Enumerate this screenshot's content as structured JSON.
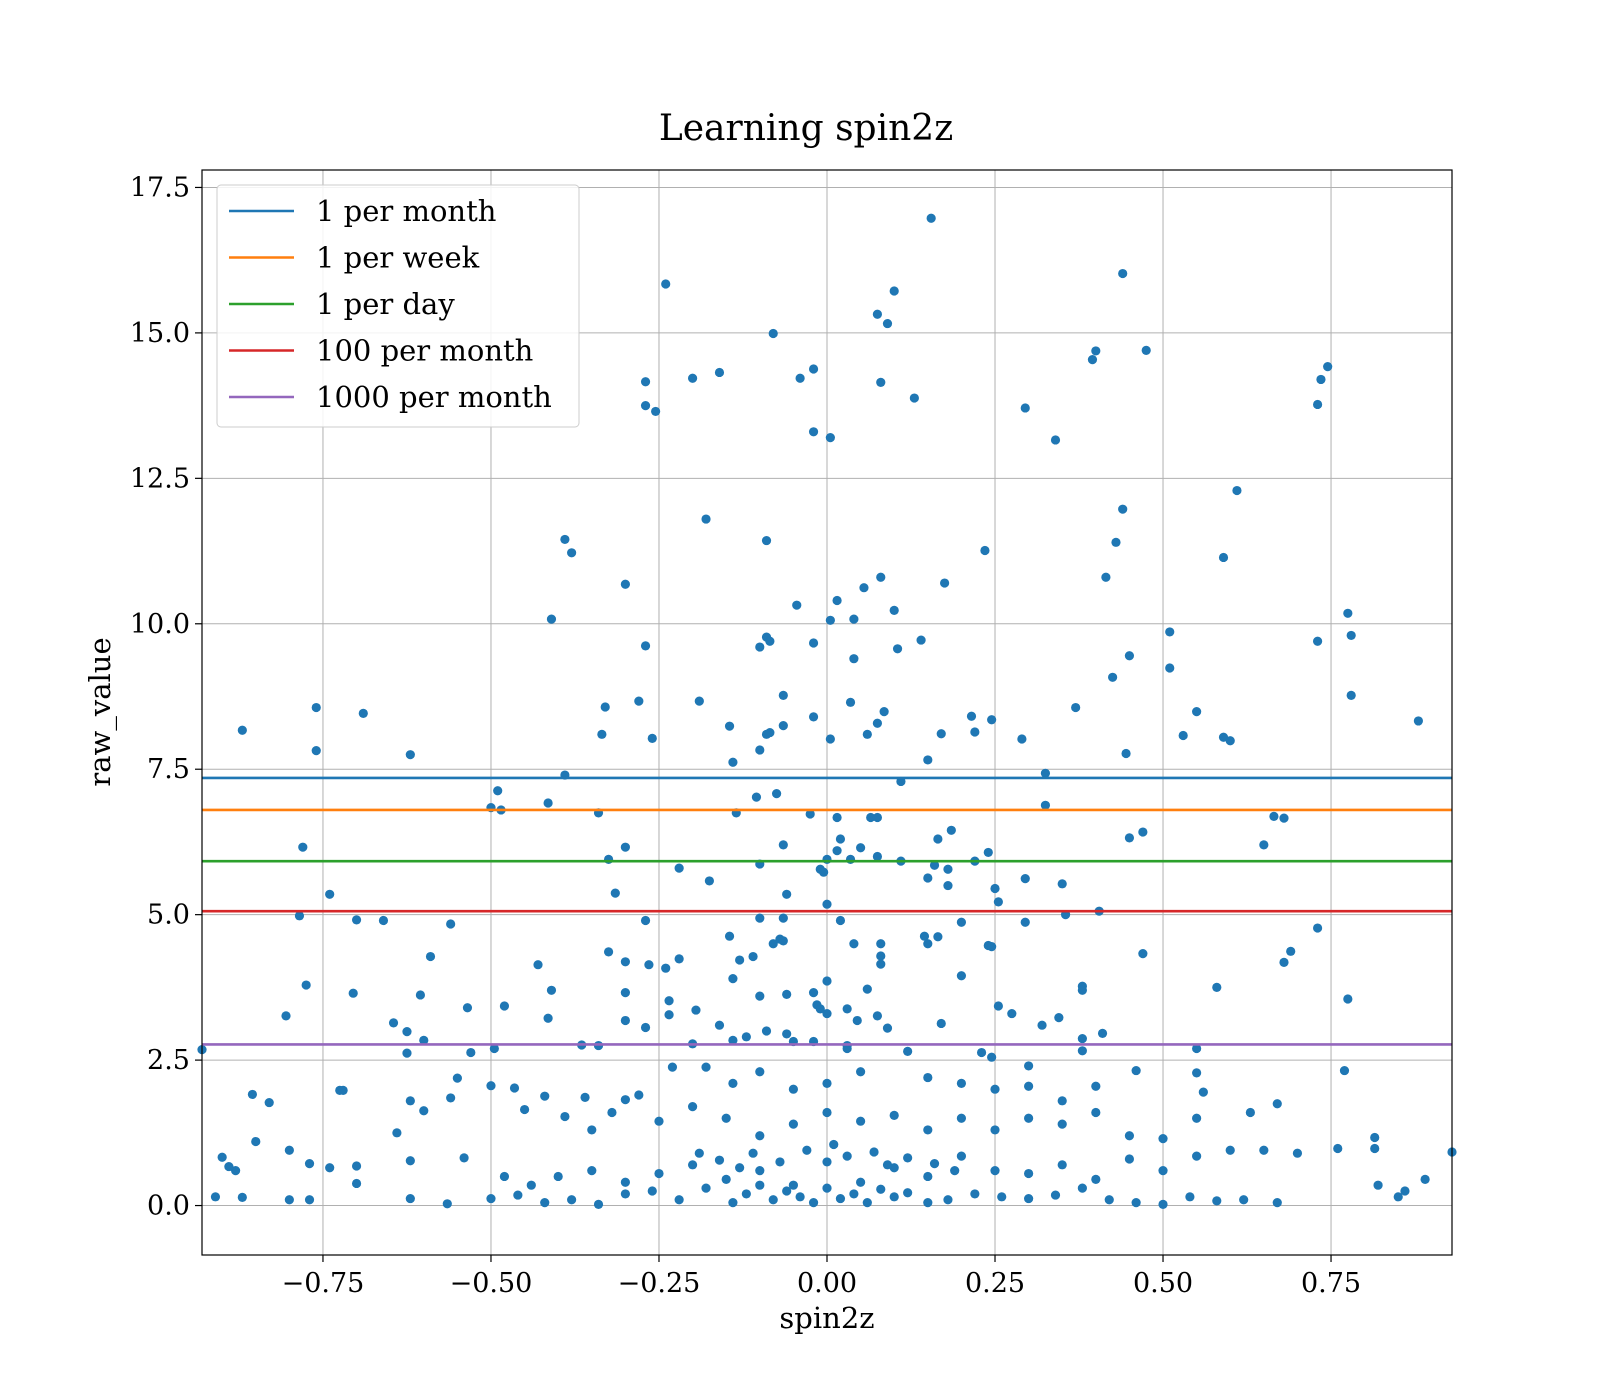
{
  "chart_data": {
    "type": "scatter",
    "title": "Learning spin2z",
    "xlabel": "spin2z",
    "ylabel": "raw_value",
    "xlim": [
      -0.93,
      0.93
    ],
    "ylim": [
      -0.85,
      17.8
    ],
    "xticks": [
      -0.75,
      -0.5,
      -0.25,
      0.0,
      0.25,
      0.5,
      0.75
    ],
    "xtick_labels": [
      "−0.75",
      "−0.50",
      "−0.25",
      "0.00",
      "0.25",
      "0.50",
      "0.75"
    ],
    "yticks": [
      0.0,
      2.5,
      5.0,
      7.5,
      10.0,
      12.5,
      15.0,
      17.5
    ],
    "ytick_labels": [
      "0.0",
      "2.5",
      "5.0",
      "7.5",
      "10.0",
      "12.5",
      "15.0",
      "17.5"
    ],
    "grid": true,
    "legend_position": "top-left",
    "point_color": "#1f77b4",
    "hlines": [
      {
        "name": "1 per month",
        "y": 7.35,
        "color": "#1f77b4"
      },
      {
        "name": "1 per week",
        "y": 6.8,
        "color": "#ff7f0e"
      },
      {
        "name": "1 per day",
        "y": 5.92,
        "color": "#2ca02c"
      },
      {
        "name": "100 per month",
        "y": 5.06,
        "color": "#d62728"
      },
      {
        "name": "1000 per month",
        "y": 2.77,
        "color": "#9467bd"
      }
    ],
    "points": [
      [
        0.155,
        16.97
      ],
      [
        -0.24,
        15.84
      ],
      [
        0.44,
        16.02
      ],
      [
        0.1,
        15.72
      ],
      [
        0.075,
        15.32
      ],
      [
        0.09,
        15.16
      ],
      [
        -0.08,
        14.99
      ],
      [
        0.4,
        14.69
      ],
      [
        0.395,
        14.54
      ],
      [
        0.475,
        14.7
      ],
      [
        0.745,
        14.42
      ],
      [
        0.735,
        14.2
      ],
      [
        0.73,
        13.77
      ],
      [
        -0.27,
        14.16
      ],
      [
        -0.27,
        13.75
      ],
      [
        -0.255,
        13.65
      ],
      [
        -0.2,
        14.22
      ],
      [
        -0.16,
        14.32
      ],
      [
        -0.04,
        14.22
      ],
      [
        -0.02,
        14.38
      ],
      [
        0.08,
        14.15
      ],
      [
        0.13,
        13.88
      ],
      [
        0.295,
        13.71
      ],
      [
        0.34,
        13.16
      ],
      [
        -0.02,
        13.3
      ],
      [
        0.005,
        13.2
      ],
      [
        0.61,
        12.29
      ],
      [
        0.44,
        11.97
      ],
      [
        0.43,
        11.4
      ],
      [
        0.59,
        11.14
      ],
      [
        0.415,
        10.8
      ],
      [
        -0.39,
        11.45
      ],
      [
        -0.38,
        11.22
      ],
      [
        -0.18,
        11.8
      ],
      [
        -0.09,
        11.43
      ],
      [
        0.235,
        11.26
      ],
      [
        0.175,
        10.7
      ],
      [
        0.08,
        10.8
      ],
      [
        0.055,
        10.62
      ],
      [
        0.015,
        10.4
      ],
      [
        -0.3,
        10.68
      ],
      [
        -0.41,
        10.08
      ],
      [
        -0.045,
        10.32
      ],
      [
        0.005,
        10.06
      ],
      [
        0.04,
        10.08
      ],
      [
        0.1,
        10.23
      ],
      [
        0.775,
        10.18
      ],
      [
        0.51,
        9.86
      ],
      [
        0.78,
        9.8
      ],
      [
        0.73,
        9.7
      ],
      [
        -0.27,
        9.62
      ],
      [
        -0.1,
        9.6
      ],
      [
        -0.09,
        9.77
      ],
      [
        -0.085,
        9.7
      ],
      [
        -0.02,
        9.67
      ],
      [
        0.04,
        9.4
      ],
      [
        0.105,
        9.57
      ],
      [
        0.14,
        9.72
      ],
      [
        0.45,
        9.45
      ],
      [
        0.51,
        9.24
      ],
      [
        0.425,
        9.08
      ],
      [
        -0.87,
        8.17
      ],
      [
        -0.76,
        8.56
      ],
      [
        -0.69,
        8.46
      ],
      [
        -0.76,
        7.82
      ],
      [
        -0.62,
        7.75
      ],
      [
        -0.33,
        8.57
      ],
      [
        -0.28,
        8.67
      ],
      [
        -0.335,
        8.1
      ],
      [
        -0.26,
        8.03
      ],
      [
        -0.19,
        8.67
      ],
      [
        -0.145,
        8.24
      ],
      [
        -0.065,
        8.77
      ],
      [
        -0.09,
        8.1
      ],
      [
        -0.085,
        8.13
      ],
      [
        -0.065,
        8.25
      ],
      [
        -0.02,
        8.4
      ],
      [
        0.005,
        8.02
      ],
      [
        0.035,
        8.65
      ],
      [
        0.085,
        8.49
      ],
      [
        0.06,
        8.1
      ],
      [
        0.075,
        8.29
      ],
      [
        0.17,
        8.11
      ],
      [
        0.215,
        8.41
      ],
      [
        0.22,
        8.14
      ],
      [
        0.245,
        8.35
      ],
      [
        0.29,
        8.02
      ],
      [
        0.37,
        8.56
      ],
      [
        0.78,
        8.77
      ],
      [
        0.88,
        8.33
      ],
      [
        0.53,
        8.08
      ],
      [
        0.55,
        8.49
      ],
      [
        0.59,
        8.05
      ],
      [
        0.6,
        7.99
      ],
      [
        0.445,
        7.77
      ],
      [
        -0.14,
        7.62
      ],
      [
        -0.1,
        7.83
      ],
      [
        0.15,
        7.66
      ],
      [
        0.11,
        7.29
      ],
      [
        -0.39,
        7.4
      ],
      [
        0.325,
        7.43
      ],
      [
        -0.49,
        7.13
      ],
      [
        -0.5,
        6.84
      ],
      [
        -0.485,
        6.8
      ],
      [
        -0.415,
        6.92
      ],
      [
        -0.34,
        6.75
      ],
      [
        -0.105,
        7.02
      ],
      [
        -0.075,
        7.08
      ],
      [
        -0.135,
        6.75
      ],
      [
        -0.025,
        6.73
      ],
      [
        0.015,
        6.67
      ],
      [
        0.065,
        6.67
      ],
      [
        0.075,
        6.67
      ],
      [
        0.325,
        6.88
      ],
      [
        0.665,
        6.69
      ],
      [
        0.68,
        6.66
      ],
      [
        -0.78,
        6.16
      ],
      [
        -0.3,
        6.16
      ],
      [
        -0.325,
        5.95
      ],
      [
        -0.065,
        6.2
      ],
      [
        0.015,
        6.1
      ],
      [
        0.02,
        6.3
      ],
      [
        0.05,
        6.15
      ],
      [
        0.075,
        6.0
      ],
      [
        0.035,
        5.95
      ],
      [
        0.0,
        5.95
      ],
      [
        0.165,
        6.3
      ],
      [
        0.185,
        6.45
      ],
      [
        0.24,
        6.07
      ],
      [
        0.22,
        5.92
      ],
      [
        0.18,
        5.78
      ],
      [
        0.16,
        5.85
      ],
      [
        0.11,
        5.92
      ],
      [
        0.45,
        6.32
      ],
      [
        0.47,
        6.42
      ],
      [
        0.65,
        6.2
      ],
      [
        -0.74,
        5.35
      ],
      [
        -0.315,
        5.37
      ],
      [
        -0.22,
        5.8
      ],
      [
        -0.175,
        5.58
      ],
      [
        -0.1,
        5.87
      ],
      [
        -0.01,
        5.78
      ],
      [
        -0.005,
        5.73
      ],
      [
        -0.06,
        5.35
      ],
      [
        0.0,
        5.18
      ],
      [
        0.18,
        5.5
      ],
      [
        0.15,
        5.63
      ],
      [
        0.25,
        5.45
      ],
      [
        0.255,
        5.22
      ],
      [
        0.295,
        5.62
      ],
      [
        0.35,
        5.53
      ],
      [
        -0.785,
        4.98
      ],
      [
        -0.7,
        4.91
      ],
      [
        -0.66,
        4.9
      ],
      [
        -0.56,
        4.84
      ],
      [
        -0.27,
        4.9
      ],
      [
        -0.1,
        4.94
      ],
      [
        -0.065,
        4.94
      ],
      [
        0.02,
        4.9
      ],
      [
        0.295,
        4.87
      ],
      [
        0.355,
        5.0
      ],
      [
        0.405,
        5.06
      ],
      [
        -0.59,
        4.28
      ],
      [
        -0.43,
        4.14
      ],
      [
        -0.325,
        4.36
      ],
      [
        -0.3,
        4.19
      ],
      [
        -0.265,
        4.14
      ],
      [
        -0.24,
        4.08
      ],
      [
        -0.22,
        4.24
      ],
      [
        -0.145,
        4.63
      ],
      [
        -0.13,
        4.22
      ],
      [
        -0.11,
        4.28
      ],
      [
        -0.08,
        4.5
      ],
      [
        -0.07,
        4.58
      ],
      [
        -0.065,
        4.55
      ],
      [
        0.04,
        4.5
      ],
      [
        0.08,
        4.5
      ],
      [
        0.08,
        4.29
      ],
      [
        0.08,
        4.15
      ],
      [
        0.145,
        4.63
      ],
      [
        0.15,
        4.5
      ],
      [
        0.165,
        4.62
      ],
      [
        0.2,
        4.87
      ],
      [
        0.24,
        4.47
      ],
      [
        0.245,
        4.45
      ],
      [
        0.47,
        4.33
      ],
      [
        0.73,
        4.77
      ],
      [
        0.69,
        4.37
      ],
      [
        0.68,
        4.18
      ],
      [
        -0.775,
        3.79
      ],
      [
        -0.705,
        3.65
      ],
      [
        -0.605,
        3.62
      ],
      [
        -0.41,
        3.7
      ],
      [
        -0.3,
        3.66
      ],
      [
        -0.235,
        3.52
      ],
      [
        -0.235,
        3.28
      ],
      [
        -0.195,
        3.36
      ],
      [
        -0.14,
        3.9
      ],
      [
        -0.1,
        3.6
      ],
      [
        -0.06,
        3.63
      ],
      [
        -0.02,
        3.66
      ],
      [
        -0.015,
        3.45
      ],
      [
        -0.01,
        3.38
      ],
      [
        0.0,
        3.86
      ],
      [
        0.0,
        3.3
      ],
      [
        0.03,
        3.38
      ],
      [
        0.06,
        3.72
      ],
      [
        0.2,
        3.95
      ],
      [
        0.255,
        3.43
      ],
      [
        0.275,
        3.3
      ],
      [
        0.38,
        3.77
      ],
      [
        0.38,
        3.7
      ],
      [
        0.58,
        3.75
      ],
      [
        0.775,
        3.55
      ],
      [
        -0.805,
        3.26
      ],
      [
        -0.645,
        3.14
      ],
      [
        -0.625,
        2.99
      ],
      [
        -0.6,
        2.84
      ],
      [
        -0.535,
        3.4
      ],
      [
        -0.48,
        3.43
      ],
      [
        -0.415,
        3.22
      ],
      [
        -0.3,
        3.18
      ],
      [
        -0.27,
        3.06
      ],
      [
        -0.16,
        3.1
      ],
      [
        -0.09,
        3.0
      ],
      [
        -0.06,
        2.95
      ],
      [
        -0.02,
        2.82
      ],
      [
        0.03,
        2.75
      ],
      [
        0.045,
        3.18
      ],
      [
        0.075,
        3.26
      ],
      [
        0.09,
        3.05
      ],
      [
        0.17,
        3.13
      ],
      [
        0.32,
        3.1
      ],
      [
        0.345,
        3.23
      ],
      [
        0.41,
        2.96
      ],
      [
        0.38,
        2.87
      ],
      [
        -0.93,
        2.68
      ],
      [
        -0.625,
        2.62
      ],
      [
        -0.53,
        2.63
      ],
      [
        -0.495,
        2.7
      ],
      [
        -0.365,
        2.76
      ],
      [
        -0.34,
        2.75
      ],
      [
        -0.14,
        2.84
      ],
      [
        -0.12,
        2.9
      ],
      [
        -0.2,
        2.78
      ],
      [
        -0.05,
        2.82
      ],
      [
        0.03,
        2.7
      ],
      [
        0.12,
        2.65
      ],
      [
        0.23,
        2.63
      ],
      [
        0.245,
        2.55
      ],
      [
        0.3,
        2.4
      ],
      [
        0.38,
        2.66
      ],
      [
        0.55,
        2.7
      ],
      [
        -0.855,
        1.91
      ],
      [
        -0.725,
        1.98
      ],
      [
        -0.72,
        1.98
      ],
      [
        -0.6,
        1.63
      ],
      [
        -0.55,
        2.19
      ],
      [
        -0.5,
        2.06
      ],
      [
        -0.465,
        2.02
      ],
      [
        -0.42,
        1.88
      ],
      [
        -0.36,
        1.86
      ],
      [
        -0.32,
        1.6
      ],
      [
        -0.3,
        1.82
      ],
      [
        -0.28,
        1.9
      ],
      [
        -0.23,
        2.38
      ],
      [
        -0.18,
        2.38
      ],
      [
        -0.14,
        2.1
      ],
      [
        -0.1,
        2.3
      ],
      [
        -0.05,
        2.0
      ],
      [
        0.0,
        2.1
      ],
      [
        0.05,
        2.3
      ],
      [
        0.15,
        2.2
      ],
      [
        0.2,
        2.1
      ],
      [
        0.25,
        2.0
      ],
      [
        0.3,
        2.05
      ],
      [
        0.35,
        1.8
      ],
      [
        0.4,
        2.05
      ],
      [
        0.46,
        2.32
      ],
      [
        0.55,
        2.28
      ],
      [
        0.56,
        1.95
      ],
      [
        0.63,
        1.6
      ],
      [
        0.67,
        1.75
      ],
      [
        0.77,
        2.32
      ],
      [
        -0.83,
        1.77
      ],
      [
        -0.7,
        0.68
      ],
      [
        -0.64,
        1.25
      ],
      [
        -0.62,
        1.8
      ],
      [
        -0.56,
        1.85
      ],
      [
        -0.45,
        1.65
      ],
      [
        -0.39,
        1.53
      ],
      [
        -0.35,
        1.3
      ],
      [
        -0.25,
        1.45
      ],
      [
        -0.2,
        1.7
      ],
      [
        -0.15,
        1.5
      ],
      [
        -0.1,
        1.2
      ],
      [
        -0.05,
        1.4
      ],
      [
        0.0,
        1.6
      ],
      [
        0.05,
        1.45
      ],
      [
        0.1,
        1.55
      ],
      [
        0.15,
        1.3
      ],
      [
        0.2,
        1.5
      ],
      [
        0.25,
        1.3
      ],
      [
        0.3,
        1.5
      ],
      [
        0.35,
        1.4
      ],
      [
        0.4,
        1.6
      ],
      [
        0.45,
        1.2
      ],
      [
        0.5,
        1.15
      ],
      [
        0.55,
        1.5
      ],
      [
        -0.85,
        1.1
      ],
      [
        -0.8,
        0.95
      ],
      [
        -0.77,
        0.72
      ],
      [
        -0.88,
        0.6
      ],
      [
        -0.9,
        0.83
      ],
      [
        -0.89,
        0.67
      ],
      [
        -0.74,
        0.65
      ],
      [
        -0.62,
        0.77
      ],
      [
        -0.54,
        0.82
      ],
      [
        -0.48,
        0.5
      ],
      [
        -0.44,
        0.35
      ],
      [
        -0.4,
        0.5
      ],
      [
        -0.35,
        0.6
      ],
      [
        -0.3,
        0.4
      ],
      [
        -0.25,
        0.55
      ],
      [
        -0.2,
        0.7
      ],
      [
        -0.15,
        0.45
      ],
      [
        -0.1,
        0.6
      ],
      [
        -0.05,
        0.35
      ],
      [
        0.0,
        0.75
      ],
      [
        0.05,
        0.4
      ],
      [
        0.1,
        0.65
      ],
      [
        0.15,
        0.5
      ],
      [
        0.2,
        0.85
      ],
      [
        0.25,
        0.6
      ],
      [
        0.3,
        0.55
      ],
      [
        0.35,
        0.7
      ],
      [
        0.4,
        0.45
      ],
      [
        0.45,
        0.8
      ],
      [
        0.5,
        0.6
      ],
      [
        0.55,
        0.85
      ],
      [
        0.6,
        0.95
      ],
      [
        0.65,
        0.95
      ],
      [
        0.7,
        0.9
      ],
      [
        0.76,
        0.98
      ],
      [
        0.815,
        0.98
      ],
      [
        0.815,
        1.17
      ],
      [
        0.93,
        0.92
      ],
      [
        -0.91,
        0.15
      ],
      [
        -0.87,
        0.14
      ],
      [
        -0.8,
        0.1
      ],
      [
        -0.77,
        0.1
      ],
      [
        -0.7,
        0.38
      ],
      [
        -0.62,
        0.12
      ],
      [
        -0.565,
        0.03
      ],
      [
        -0.5,
        0.12
      ],
      [
        -0.46,
        0.18
      ],
      [
        -0.42,
        0.05
      ],
      [
        -0.38,
        0.1
      ],
      [
        -0.34,
        0.02
      ],
      [
        -0.3,
        0.2
      ],
      [
        -0.26,
        0.25
      ],
      [
        -0.22,
        0.1
      ],
      [
        -0.18,
        0.3
      ],
      [
        -0.14,
        0.05
      ],
      [
        -0.12,
        0.2
      ],
      [
        -0.1,
        0.35
      ],
      [
        -0.08,
        0.1
      ],
      [
        -0.06,
        0.25
      ],
      [
        -0.04,
        0.15
      ],
      [
        -0.02,
        0.05
      ],
      [
        0.0,
        0.3
      ],
      [
        0.02,
        0.12
      ],
      [
        0.04,
        0.2
      ],
      [
        0.06,
        0.05
      ],
      [
        0.08,
        0.28
      ],
      [
        0.1,
        0.15
      ],
      [
        0.12,
        0.22
      ],
      [
        0.15,
        0.05
      ],
      [
        0.18,
        0.1
      ],
      [
        0.22,
        0.2
      ],
      [
        0.26,
        0.15
      ],
      [
        0.3,
        0.12
      ],
      [
        0.34,
        0.18
      ],
      [
        0.38,
        0.3
      ],
      [
        0.42,
        0.1
      ],
      [
        0.46,
        0.05
      ],
      [
        0.5,
        0.02
      ],
      [
        0.54,
        0.15
      ],
      [
        0.58,
        0.08
      ],
      [
        0.62,
        0.1
      ],
      [
        0.67,
        0.05
      ],
      [
        0.82,
        0.35
      ],
      [
        0.85,
        0.15
      ],
      [
        0.86,
        0.25
      ],
      [
        0.89,
        0.45
      ],
      [
        -0.11,
        0.9
      ],
      [
        -0.07,
        0.75
      ],
      [
        -0.03,
        0.95
      ],
      [
        0.01,
        1.05
      ],
      [
        0.03,
        0.85
      ],
      [
        0.07,
        0.92
      ],
      [
        0.09,
        0.7
      ],
      [
        0.12,
        0.82
      ],
      [
        -0.13,
        0.65
      ],
      [
        -0.16,
        0.78
      ],
      [
        -0.19,
        0.9
      ],
      [
        0.16,
        0.72
      ],
      [
        0.19,
        0.6
      ]
    ]
  }
}
